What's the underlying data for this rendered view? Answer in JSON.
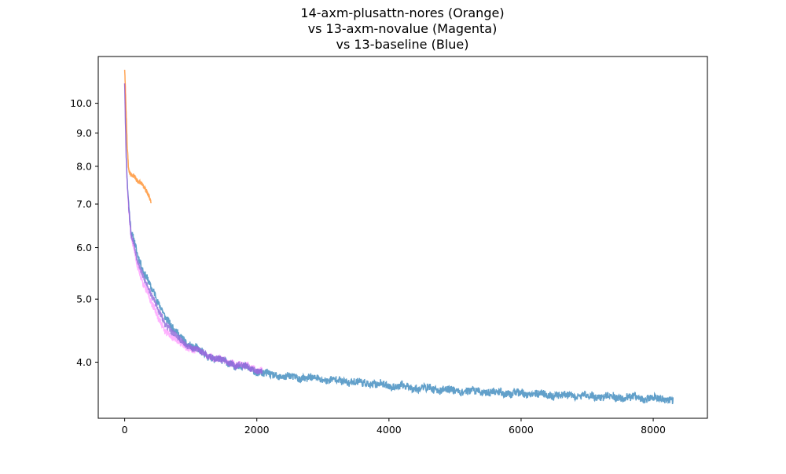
{
  "chart_data": {
    "type": "line",
    "title_lines": [
      "14-axm-plusattn-nores (Orange)",
      "vs 13-axm-novalue (Magenta)",
      "vs 13-baseline (Blue)"
    ],
    "xlabel": "",
    "ylabel": "",
    "xlim": [
      -400,
      8820
    ],
    "ylim": [
      3.28,
      11.8
    ],
    "y_scale": "log",
    "grid": false,
    "x_ticks": [
      0,
      2000,
      4000,
      6000,
      8000
    ],
    "x_tick_labels": [
      "0",
      "2000",
      "4000",
      "6000",
      "8000"
    ],
    "y_ticks": [
      4.0,
      5.0,
      6.0,
      7.0,
      8.0,
      9.0,
      10.0
    ],
    "y_tick_labels": [
      "4.0",
      "5.0",
      "6.0",
      "7.0",
      "8.0",
      "9.0",
      "10.0"
    ],
    "series": [
      {
        "color": "#1f77b4",
        "alpha": 0.7,
        "x": [
          0,
          20,
          40,
          60,
          80,
          100,
          150,
          200,
          250,
          300,
          350,
          400,
          450,
          500,
          600,
          700,
          800,
          900,
          1000,
          1200,
          1400,
          1600,
          1800,
          2000,
          2100,
          2400,
          2800,
          3200,
          3600,
          4000,
          4500,
          5000,
          5500,
          6000,
          6500,
          7000,
          7500,
          8000,
          8300
        ],
        "y": [
          10.8,
          8.5,
          7.5,
          7.0,
          6.6,
          6.3,
          6.1,
          5.85,
          5.65,
          5.5,
          5.35,
          5.2,
          5.08,
          4.95,
          4.75,
          4.55,
          4.42,
          4.32,
          4.24,
          4.12,
          4.04,
          3.98,
          3.93,
          3.88,
          3.84,
          3.8,
          3.78,
          3.75,
          3.72,
          3.68,
          3.65,
          3.62,
          3.6,
          3.58,
          3.56,
          3.55,
          3.53,
          3.52,
          3.5
        ]
      },
      {
        "color": "#ff7f0e",
        "alpha": 0.7,
        "x": [
          0,
          20,
          40,
          60,
          80,
          100,
          150,
          200,
          250,
          300,
          350,
          400
        ],
        "y": [
          11.3,
          9.8,
          8.5,
          7.9,
          7.8,
          7.75,
          7.7,
          7.6,
          7.55,
          7.45,
          7.25,
          7.05
        ]
      },
      {
        "color": "#ff00ff",
        "alpha": 0.3,
        "x": [
          0,
          20,
          40,
          60,
          80,
          100,
          150,
          200,
          250,
          300,
          350,
          400,
          450,
          500,
          600,
          700,
          800,
          900,
          1000,
          1200,
          1400,
          1600,
          1800,
          2000,
          2080
        ],
        "y": [
          10.8,
          8.4,
          7.4,
          6.9,
          6.5,
          6.2,
          5.9,
          5.6,
          5.4,
          5.25,
          5.1,
          4.95,
          4.82,
          4.7,
          4.5,
          4.38,
          4.3,
          4.25,
          4.2,
          4.12,
          4.05,
          4.0,
          3.95,
          3.9,
          3.88
        ]
      }
    ],
    "overlap_region": {
      "color": "#9370db",
      "x_range": [
        60,
        2080
      ]
    }
  }
}
